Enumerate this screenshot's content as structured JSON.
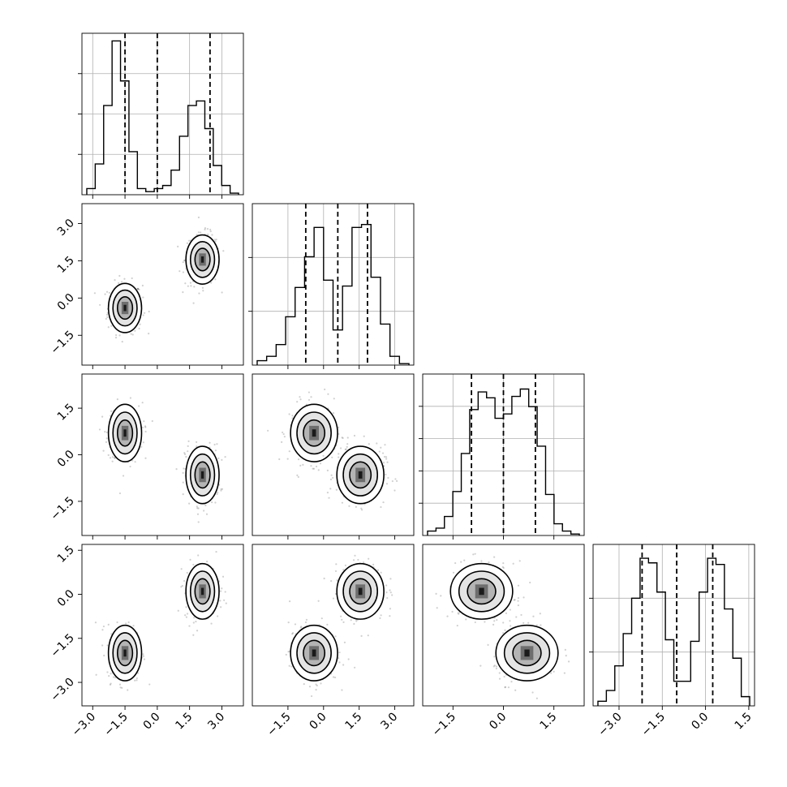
{
  "chart_data": {
    "type": "corner",
    "title": "",
    "params": [
      {
        "xlim": [
          -3.5,
          4.0
        ],
        "ticks": [
          -3.0,
          -1.5,
          0.0,
          1.5,
          3.0
        ],
        "tick_labels": [
          "−3.0",
          "−1.5",
          "0.0",
          "1.5",
          "3.0"
        ],
        "quantiles": [
          -1.5,
          0.0,
          2.45
        ],
        "hist_ticks": [
          0,
          1,
          2,
          3
        ]
      },
      {
        "xlim": [
          -3.0,
          3.8
        ],
        "ticks": [
          -1.5,
          0.0,
          1.5,
          3.0
        ],
        "tick_labels": [
          "−1.5",
          "0.0",
          "1.5",
          "3.0"
        ],
        "quantiles": [
          -0.75,
          0.6,
          1.85
        ],
        "hist_ticks": [
          0,
          1,
          2
        ]
      },
      {
        "xlim": [
          -2.4,
          2.4
        ],
        "ticks": [
          -1.5,
          0.0,
          1.5
        ],
        "tick_labels": [
          "−1.5",
          "0.0",
          "1.5"
        ],
        "quantiles": [
          -0.95,
          0.0,
          0.95
        ],
        "hist_ticks": [
          0,
          1,
          2,
          3,
          4
        ]
      },
      {
        "xlim": [
          -3.9,
          1.7
        ],
        "ticks": [
          -3.0,
          -1.5,
          0.0,
          1.5
        ],
        "tick_labels": [
          "−3.0",
          "−1.5",
          "0.0",
          "1.5"
        ],
        "quantiles": [
          -2.2,
          -1.0,
          0.25
        ],
        "hist_ticks": [
          0,
          1,
          2
        ]
      }
    ],
    "histograms": [
      {
        "counts": [
          0.04,
          0.2,
          0.58,
          1.0,
          0.74,
          0.28,
          0.04,
          0.02,
          0.04,
          0.06,
          0.16,
          0.38,
          0.58,
          0.61,
          0.43,
          0.19,
          0.06,
          0.01
        ],
        "ymax": 1.0
      },
      {
        "counts": [
          0.03,
          0.06,
          0.14,
          0.33,
          0.53,
          0.74,
          0.94,
          0.58,
          0.24,
          0.54,
          0.94,
          0.96,
          0.6,
          0.28,
          0.06,
          0.01
        ],
        "ymax": 1.05
      },
      {
        "counts": [
          0.03,
          0.05,
          0.13,
          0.3,
          0.56,
          0.86,
          0.98,
          0.94,
          0.8,
          0.83,
          0.95,
          1.0,
          0.88,
          0.61,
          0.28,
          0.08,
          0.03,
          0.01
        ],
        "ymax": 1.05
      },
      {
        "counts": [
          0.03,
          0.1,
          0.26,
          0.47,
          0.7,
          0.96,
          0.93,
          0.74,
          0.43,
          0.16,
          0.16,
          0.42,
          0.74,
          0.96,
          0.92,
          0.63,
          0.31,
          0.06
        ],
        "ymax": 1.0
      }
    ],
    "ylims": [
      null,
      [
        -2.7,
        3.8
      ],
      [
        -2.6,
        2.6
      ],
      [
        -3.8,
        1.7
      ]
    ],
    "y_tick_labels": [
      null,
      [
        "−1.5",
        "0.0",
        "1.5",
        "3.0"
      ],
      [
        "−1.5",
        "0.0",
        "1.5"
      ],
      [
        "−3.0",
        "−1.5",
        "0.0",
        "1.5"
      ]
    ],
    "y_ticks": [
      null,
      [
        -1.5,
        0.0,
        1.5,
        3.0
      ],
      [
        -1.5,
        0.0,
        1.5
      ],
      [
        -3.0,
        -1.5,
        0.0,
        1.5
      ]
    ],
    "clusters": {
      "A": [
        -1.5,
        -0.4,
        0.7,
        -2.0
      ],
      "B": [
        2.1,
        1.55,
        -0.65,
        0.1
      ],
      "spread": [
        0.35,
        0.45,
        0.42,
        0.43
      ]
    },
    "contour_levels": [
      1.0,
      1.6,
      2.2
    ],
    "grid": true,
    "legend": "none"
  }
}
